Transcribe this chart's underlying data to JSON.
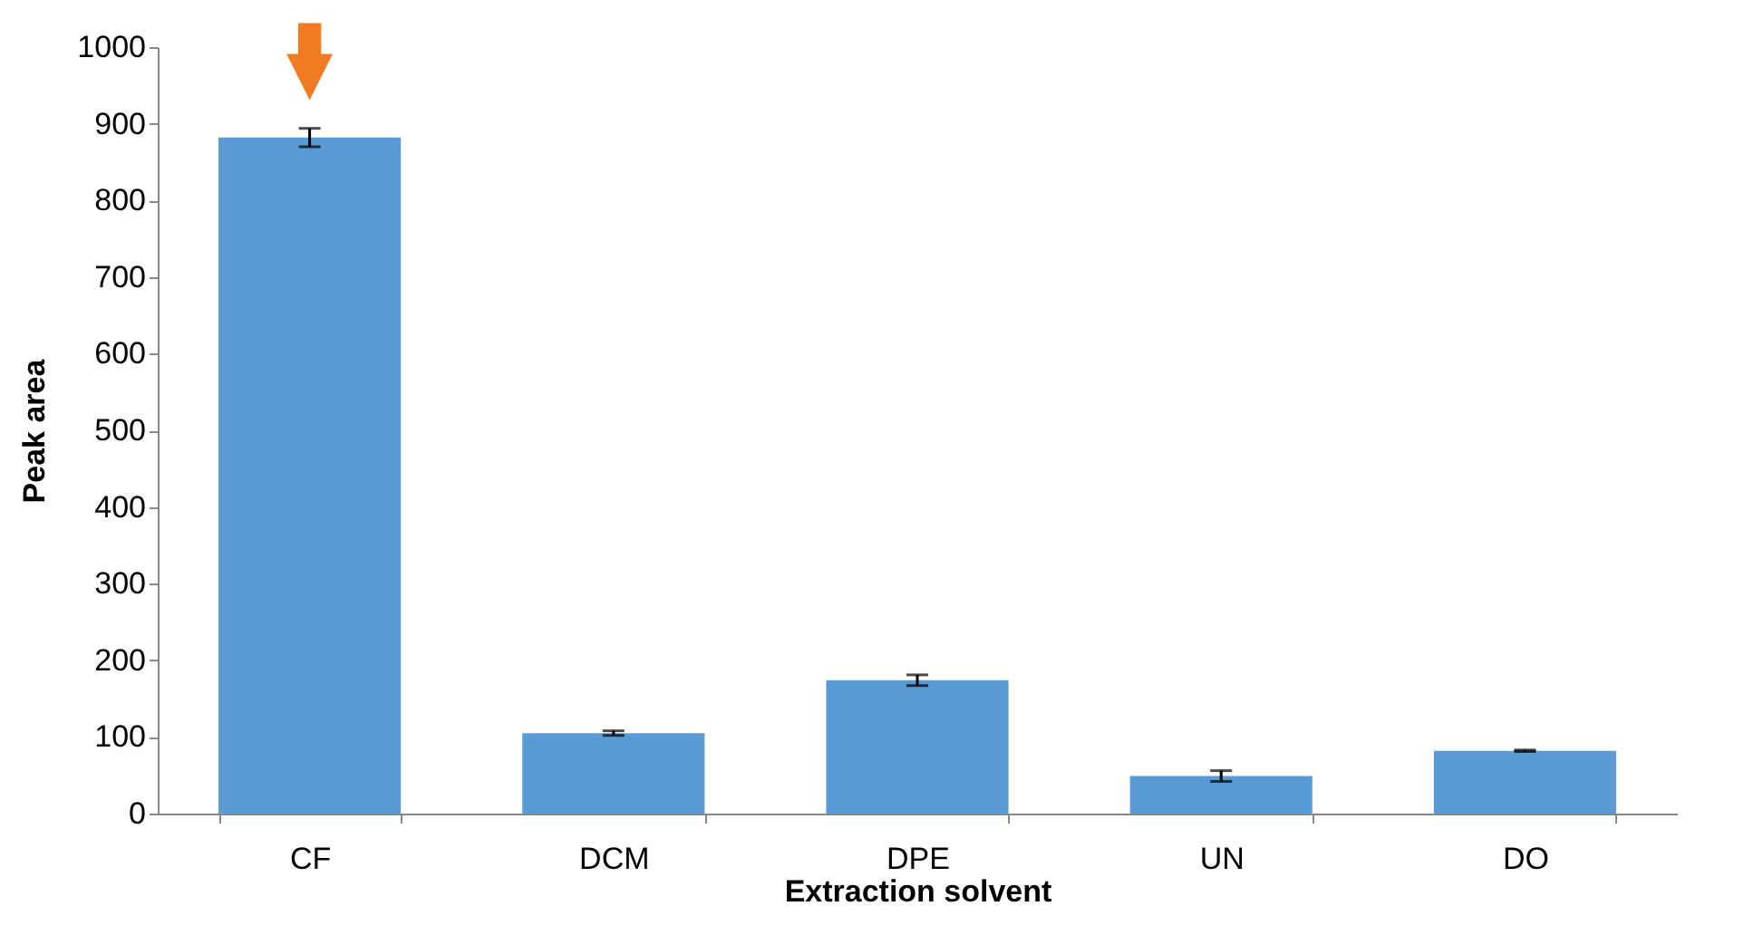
{
  "chart_data": {
    "type": "bar",
    "xlabel": "Extraction solvent",
    "ylabel": "Peak area",
    "categories": [
      "CF",
      "DCM",
      "DPE",
      "UN",
      "DO"
    ],
    "values": [
      882,
      105,
      174,
      49,
      82
    ],
    "errors": [
      12,
      3,
      7,
      7,
      1
    ],
    "color": "#5b9bd5",
    "ylim": [
      0,
      1000
    ],
    "yticks": [
      0,
      100,
      200,
      300,
      400,
      500,
      600,
      700,
      800,
      900,
      1000
    ],
    "grid": false
  }
}
